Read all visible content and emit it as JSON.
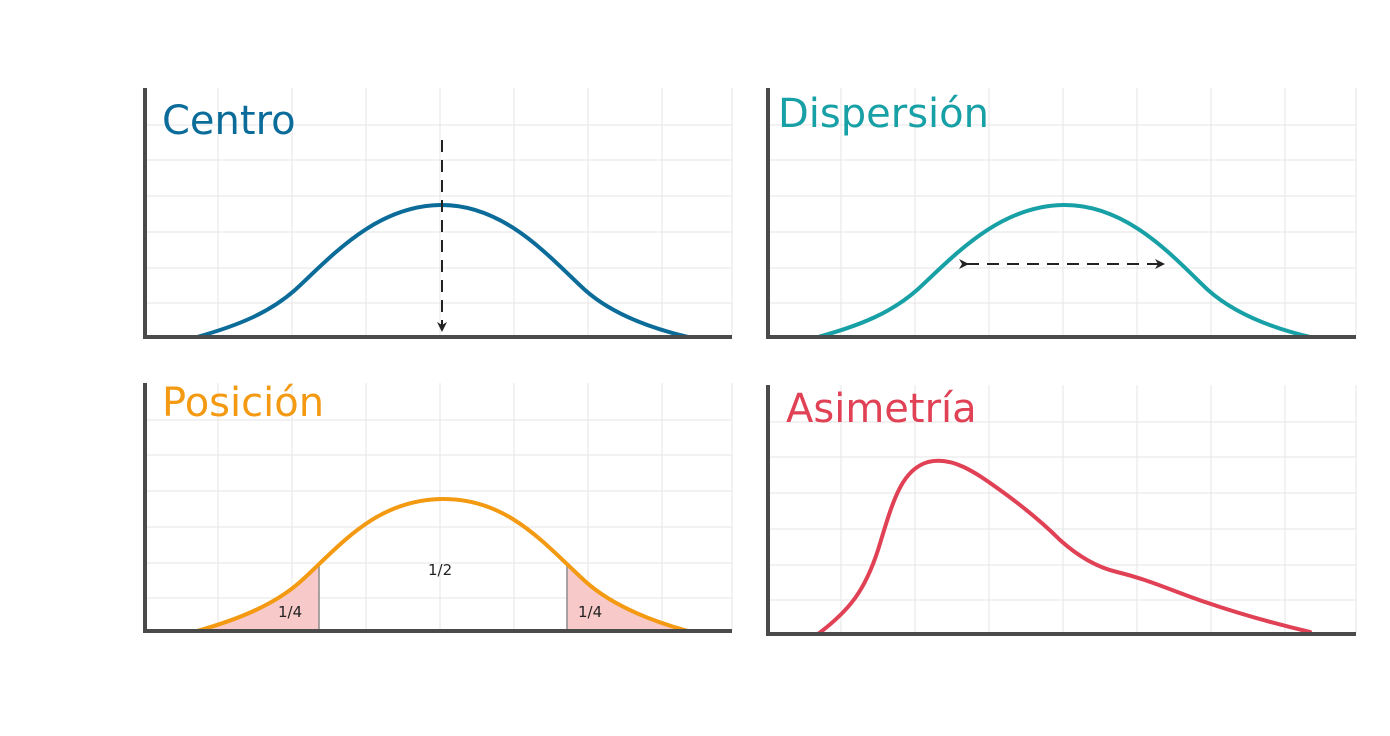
{
  "panels": {
    "centro": {
      "title": "Centro",
      "color": "#0b6c9a"
    },
    "dispersion": {
      "title": "Dispersión",
      "color": "#17a0a5"
    },
    "posicion": {
      "title": "Posición",
      "color": "#f39a12",
      "shade_color": "#f7c9c9",
      "labels": {
        "left_quarter": "1/4",
        "middle_half": "1/2",
        "right_quarter": "1/4"
      }
    },
    "asimetria": {
      "title": "Asimetría",
      "color": "#e04155"
    }
  },
  "axis_color": "#4a4a4a",
  "arrow_color": "#222222"
}
